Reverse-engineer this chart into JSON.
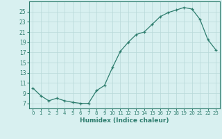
{
  "x": [
    0,
    1,
    2,
    3,
    4,
    5,
    6,
    7,
    8,
    9,
    10,
    11,
    12,
    13,
    14,
    15,
    16,
    17,
    18,
    19,
    20,
    21,
    22,
    23
  ],
  "y": [
    10.0,
    8.5,
    7.5,
    8.0,
    7.5,
    7.2,
    7.0,
    7.0,
    9.5,
    10.5,
    14.0,
    17.2,
    19.0,
    20.5,
    21.0,
    22.5,
    24.0,
    24.8,
    25.3,
    25.8,
    25.5,
    23.5,
    19.5,
    17.5
  ],
  "xlabel": "Humidex (Indice chaleur)",
  "xlim": [
    -0.5,
    23.5
  ],
  "ylim": [
    6,
    27
  ],
  "yticks": [
    7,
    9,
    11,
    13,
    15,
    17,
    19,
    21,
    23,
    25
  ],
  "xticks": [
    0,
    1,
    2,
    3,
    4,
    5,
    6,
    7,
    8,
    9,
    10,
    11,
    12,
    13,
    14,
    15,
    16,
    17,
    18,
    19,
    20,
    21,
    22,
    23
  ],
  "line_color": "#2e7d6e",
  "marker": "+",
  "bg_color": "#d8f0f0",
  "grid_color": "#b8d8d8"
}
